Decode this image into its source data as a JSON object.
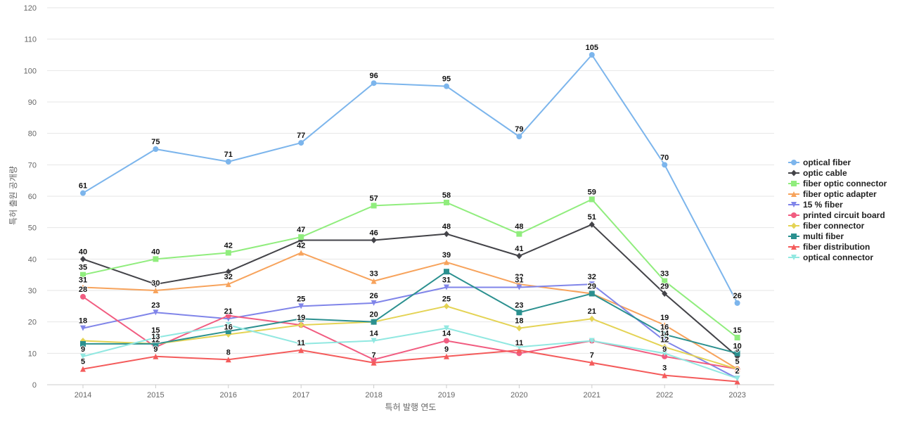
{
  "chart_data": {
    "type": "line",
    "xlabel": "특허 발행 연도",
    "ylabel": "특허 출원 공개량",
    "ylim": [
      0,
      120
    ],
    "y_ticks": [
      0,
      10,
      20,
      30,
      40,
      50,
      60,
      70,
      80,
      90,
      100,
      110,
      120
    ],
    "grid": true,
    "legend_position": "right",
    "categories": [
      "2014",
      "2015",
      "2016",
      "2017",
      "2018",
      "2019",
      "2020",
      "2021",
      "2022",
      "2023"
    ],
    "series": [
      {
        "name": "optical fiber",
        "color": "#7cb5ec",
        "marker": "circle",
        "values": [
          61,
          75,
          71,
          77,
          96,
          95,
          79,
          105,
          70,
          26
        ]
      },
      {
        "name": "optic cable",
        "color": "#434348",
        "marker": "diamond",
        "values": [
          40,
          32,
          36,
          46,
          46,
          48,
          41,
          51,
          29,
          9
        ]
      },
      {
        "name": "fiber optic connector",
        "color": "#90ed7d",
        "marker": "square",
        "values": [
          35,
          40,
          42,
          47,
          57,
          58,
          48,
          59,
          33,
          15
        ]
      },
      {
        "name": "fiber optic adapter",
        "color": "#f7a35c",
        "marker": "triangle",
        "values": [
          31,
          30,
          32,
          42,
          33,
          39,
          32,
          29,
          19,
          5
        ]
      },
      {
        "name": "15 % fiber",
        "color": "#8085e9",
        "marker": "triangle-down",
        "values": [
          18,
          23,
          21,
          25,
          26,
          31,
          31,
          32,
          14,
          2
        ]
      },
      {
        "name": "printed circuit board",
        "color": "#f15c80",
        "marker": "circle",
        "values": [
          28,
          12,
          22,
          19,
          8,
          14,
          10,
          14,
          9,
          5
        ]
      },
      {
        "name": "fiber connector",
        "color": "#e4d354",
        "marker": "diamond",
        "values": [
          14,
          13,
          16,
          19,
          20,
          25,
          18,
          21,
          12,
          5
        ]
      },
      {
        "name": "multi fiber",
        "color": "#2b908f",
        "marker": "square",
        "values": [
          13,
          13,
          17,
          21,
          20,
          36,
          23,
          29,
          16,
          10
        ]
      },
      {
        "name": "fiber distribution",
        "color": "#f45b5b",
        "marker": "triangle",
        "values": [
          5,
          9,
          8,
          11,
          7,
          9,
          11,
          7,
          3,
          1
        ]
      },
      {
        "name": "optical connector",
        "color": "#91e8e1",
        "marker": "triangle-down",
        "values": [
          9,
          15,
          19,
          13,
          14,
          18,
          12,
          14,
          10,
          2
        ]
      }
    ],
    "data_labels": [
      {
        "series": 0,
        "points": [
          0,
          1,
          2,
          3,
          4,
          5,
          6,
          7,
          8,
          9
        ]
      },
      {
        "series": 1,
        "points": [
          0,
          4,
          5,
          6,
          7,
          8,
          9
        ]
      },
      {
        "series": 2,
        "points": [
          0,
          1,
          2,
          3,
          4,
          5,
          6,
          7,
          8,
          9
        ]
      },
      {
        "series": 3,
        "points": [
          0,
          1,
          2,
          3,
          4,
          5,
          6,
          7,
          8
        ]
      },
      {
        "series": 4,
        "points": [
          0,
          1,
          2,
          3,
          4,
          5,
          6,
          7,
          8,
          9
        ]
      },
      {
        "series": 5,
        "points": [
          0,
          1,
          5,
          8
        ]
      },
      {
        "series": 6,
        "points": [
          2,
          3,
          5,
          6,
          7,
          8,
          9
        ]
      },
      {
        "series": 7,
        "points": [
          1,
          4,
          6,
          7,
          8,
          9
        ]
      },
      {
        "series": 8,
        "points": [
          0,
          1,
          2,
          3,
          4,
          5,
          6,
          7,
          8
        ]
      },
      {
        "series": 9,
        "points": [
          0,
          1,
          4,
          9
        ]
      }
    ]
  }
}
